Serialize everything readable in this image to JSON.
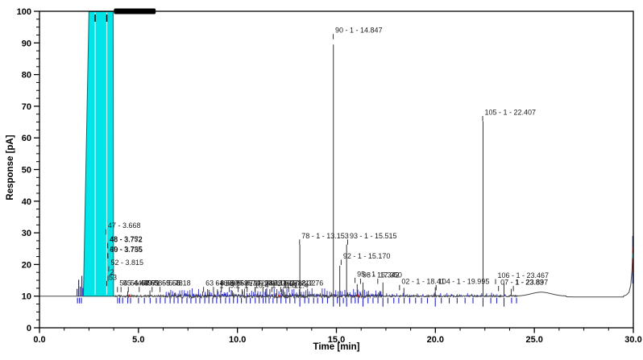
{
  "chart_data": {
    "type": "line",
    "title": "",
    "xlabel": "Time [min]",
    "ylabel": "Response [pA]",
    "xlim": [
      0,
      30
    ],
    "ylim": [
      0,
      100
    ],
    "x_major_ticks": [
      0,
      5,
      10,
      15,
      20,
      25,
      30
    ],
    "x_tick_labels": [
      "0.0",
      "5.0",
      "10.0",
      "15.0",
      "20.0",
      "25.0",
      "30.0"
    ],
    "x_minor_step": 1.25,
    "y_major_ticks": [
      0,
      10,
      20,
      30,
      40,
      50,
      60,
      70,
      80,
      90,
      100
    ],
    "y_tick_labels": [
      "0",
      "10",
      "20",
      "30",
      "40",
      "50",
      "60",
      "70",
      "80",
      "90",
      "100"
    ],
    "y_minor_step": 2.5,
    "grid": false,
    "legend": null,
    "baseline_pA": 10,
    "trace_color": "#484848",
    "marker_color": "#2222cc",
    "saturated_region": {
      "fill": "#00E5E8",
      "edge": "#0b6b6b",
      "top_left_min": 2.5,
      "top_right_min": 3.72,
      "bottom_left_min": 2.22,
      "bottom_right_min": 3.74,
      "top_pA": 100,
      "separator_lines_min": [
        2.81,
        3.4
      ],
      "top_tick_min": [
        2.81,
        3.4
      ]
    },
    "label_smear_bar": {
      "start_min": 3.76,
      "end_min": 5.87,
      "color": "#000000"
    },
    "peak_lines": [
      {
        "rt": 4.459,
        "apex_pA": 11.6
      },
      {
        "rt": 5.58,
        "apex_pA": 11.8
      },
      {
        "rt": 8.559,
        "apex_pA": 12.0
      },
      {
        "rt": 9.74,
        "apex_pA": 11.7
      },
      {
        "rt": 11.43,
        "apex_pA": 12.2
      },
      {
        "rt": 12.32,
        "apex_pA": 11.9
      },
      {
        "rt": 13.153,
        "apex_pA": 26.3
      },
      {
        "rt": 14.847,
        "apex_pA": 89.5
      },
      {
        "rt": 15.17,
        "apex_pA": 19.6
      },
      {
        "rt": 15.515,
        "apex_pA": 26.3
      },
      {
        "rt": 16.05,
        "apex_pA": 13.8
      },
      {
        "rt": 16.342,
        "apex_pA": 14.3
      },
      {
        "rt": 17.35,
        "apex_pA": 14.3
      },
      {
        "rt": 18.41,
        "apex_pA": 12.6
      },
      {
        "rt": 19.995,
        "apex_pA": 12.8
      },
      {
        "rt": 22.407,
        "apex_pA": 65.2
      },
      {
        "rt": 23.467,
        "apex_pA": 14.0
      },
      {
        "rt": 23.83,
        "apex_pA": 12.3
      }
    ],
    "peak_labels": [
      {
        "text": "47 - 3.668",
        "x": 3.42,
        "pA": 31.5
      },
      {
        "text": "48 - 3.752",
        "x": 3.5,
        "pA": 27.2
      },
      {
        "text": "48 - 3.772",
        "x": 3.51,
        "pA": 27.1
      },
      {
        "text": "49 - 3.735",
        "x": 3.5,
        "pA": 24.0
      },
      {
        "text": "50 - 3.755",
        "x": 3.52,
        "pA": 23.9
      },
      {
        "text": "52 - 3.815",
        "x": 3.56,
        "pA": 19.8
      },
      {
        "text": "2",
        "x": 3.52,
        "pA": 16.8
      },
      {
        "text": "53",
        "x": 3.46,
        "pA": 15.2
      },
      {
        "text": "54 - 4.459",
        "x": 4.0,
        "pA": 13.3
      },
      {
        "text": "55 - 4.497",
        "x": 4.18,
        "pA": 13.3
      },
      {
        "text": "56 - 4.59",
        "x": 4.55,
        "pA": 13.3
      },
      {
        "text": "57 - 1 - 5.58",
        "x": 5.1,
        "pA": 13.3
      },
      {
        "text": "58 - 5.78",
        "x": 5.75,
        "pA": 13.3
      },
      {
        "text": "59 - 6.18",
        "x": 6.15,
        "pA": 13.3
      },
      {
        "text": "63 - 8.559",
        "x": 8.35,
        "pA": 13.3
      },
      {
        "text": "64 - 8.95",
        "x": 8.85,
        "pA": 13.3
      },
      {
        "text": "66 - 9.35",
        "x": 9.25,
        "pA": 13.3
      },
      {
        "text": "67 - 9.74",
        "x": 9.65,
        "pA": 13.3
      },
      {
        "text": "69 - 10.18",
        "x": 10.1,
        "pA": 13.3
      },
      {
        "text": "71 - 10.62",
        "x": 10.55,
        "pA": 13.3
      },
      {
        "text": "72 - 11.05",
        "x": 10.95,
        "pA": 13.3
      },
      {
        "text": "74 - 11.43",
        "x": 11.35,
        "pA": 13.3
      },
      {
        "text": "75 - 11.88",
        "x": 11.8,
        "pA": 13.3
      },
      {
        "text": "76 - 12.32",
        "x": 12.25,
        "pA": 13.3
      },
      {
        "text": "77 - 12.76",
        "x": 12.65,
        "pA": 13.3
      },
      {
        "text": "1 - 9.2",
        "x": 9.05,
        "pA": 12.55
      },
      {
        "text": "1 - 10.4",
        "x": 10.3,
        "pA": 12.55
      },
      {
        "text": "1 - 11.8",
        "x": 11.7,
        "pA": 12.55
      },
      {
        "text": "1 - 12.4",
        "x": 12.3,
        "pA": 12.55
      },
      {
        "text": "78 - 1 - 13.153",
        "x": 13.2,
        "pA": 28.3
      },
      {
        "text": "90 - 1 - 14.847",
        "x": 14.9,
        "pA": 93.2
      },
      {
        "text": "93 - 1 - 15.515",
        "x": 15.63,
        "pA": 28.3
      },
      {
        "text": "92 - 1 - 15.170",
        "x": 15.3,
        "pA": 21.9
      },
      {
        "text": "95 - 1",
        "x": 16.0,
        "pA": 16.2
      },
      {
        "text": "98 - 16.342",
        "x": 16.28,
        "pA": 15.9
      },
      {
        "text": "17.350",
        "x": 17.15,
        "pA": 15.9
      },
      {
        "text": "02 - 1 - 18.41",
        "x": 18.25,
        "pA": 13.9
      },
      {
        "text": "104 - 1 - 19.995",
        "x": 20.1,
        "pA": 13.9
      },
      {
        "text": "105 - 1 - 22.407",
        "x": 22.45,
        "pA": 67.3
      },
      {
        "text": "106 - 1 - 23.467",
        "x": 23.1,
        "pA": 15.8
      },
      {
        "text": "07 - 1 - 23.83",
        "x": 23.25,
        "pA": 13.6
      },
      {
        "text": "1 - 23.897",
        "x": 24.0,
        "pA": 13.6
      }
    ],
    "pre_peak_spikes": [
      {
        "m": 1.9,
        "p": 12.3
      },
      {
        "m": 1.98,
        "p": 15.2
      },
      {
        "m": 2.06,
        "p": 13.0
      },
      {
        "m": 2.14,
        "p": 16.4
      },
      {
        "m": 2.2,
        "p": 12.6
      }
    ],
    "noise_bands": [
      {
        "start": 3.74,
        "end": 6.4,
        "amp": 0.3,
        "spike": 0.6
      },
      {
        "start": 6.4,
        "end": 17.25,
        "amp": 0.55,
        "spike": 1.2
      },
      {
        "start": 17.25,
        "end": 24.2,
        "amp": 0.22,
        "spike": 0.4
      }
    ],
    "blue_noise_bands": [
      {
        "start": 6.4,
        "end": 17.25,
        "step": 0.11,
        "max_amp": 2.2
      },
      {
        "start": 17.3,
        "end": 24.0,
        "step": 0.25,
        "max_amp": 0.8
      }
    ],
    "marker_ticks_min": [
      1.92,
      2.02,
      2.12,
      3.95,
      4.05,
      4.2,
      4.46,
      4.6,
      5.0,
      5.3,
      5.59,
      5.9,
      6.1,
      6.35,
      6.6,
      6.8,
      7.0,
      7.2,
      7.45,
      7.65,
      7.9,
      8.1,
      8.35,
      8.56,
      8.75,
      8.95,
      9.15,
      9.4,
      9.6,
      9.8,
      10.0,
      10.2,
      10.45,
      10.65,
      10.9,
      11.1,
      11.3,
      11.43,
      11.6,
      11.8,
      12.0,
      12.2,
      12.45,
      12.65,
      12.9,
      13.4,
      13.6,
      13.85,
      14.05,
      14.3,
      14.55,
      15.05,
      15.35,
      15.75,
      15.95,
      16.1,
      16.6,
      16.85,
      17.1,
      17.6,
      17.9,
      18.15,
      18.42,
      18.7,
      19.0,
      19.3,
      19.6,
      20.3,
      20.7,
      21.1,
      21.5,
      21.9,
      22.8,
      23.1,
      23.85,
      24.1
    ],
    "marker_ticks_long_min": [
      13.153,
      14.847,
      15.17,
      15.515,
      16.342,
      17.35,
      19.995,
      22.407,
      23.467
    ],
    "red_marks_min": [
      4.55,
      12.1,
      16.1
    ],
    "hump": {
      "center": 25.35,
      "sigma": 0.5,
      "amp": 1.25
    },
    "end_rise_points": [
      [
        29.5,
        10
      ],
      [
        29.66,
        10.4
      ],
      [
        29.78,
        11.2
      ],
      [
        29.87,
        13.5
      ],
      [
        29.93,
        18
      ],
      [
        29.97,
        24
      ],
      [
        30,
        29.5
      ]
    ],
    "end_rise_segments": [
      {
        "from_pA": 14.0,
        "to_pA": 17.5,
        "color": "#2233cc"
      },
      {
        "from_pA": 17.5,
        "to_pA": 22.0,
        "color": "#cc1111"
      },
      {
        "from_pA": 22.0,
        "to_pA": 23.5,
        "color": "#00cccc"
      },
      {
        "from_pA": 23.5,
        "to_pA": 25.5,
        "color": "#cc1111"
      },
      {
        "from_pA": 25.5,
        "to_pA": 29.0,
        "color": "#223377"
      }
    ]
  }
}
